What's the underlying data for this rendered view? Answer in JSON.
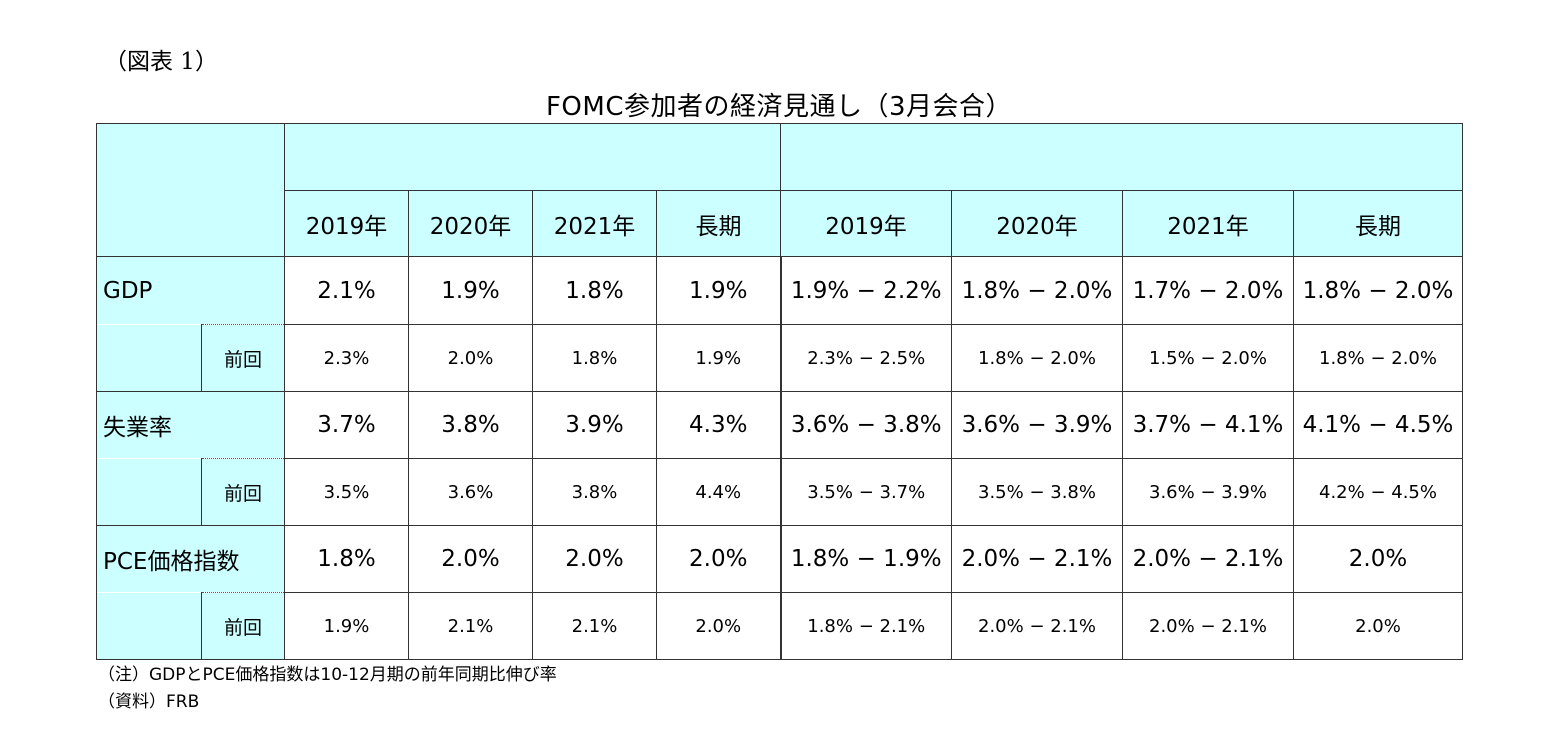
{
  "figure_label": "（図表 1）",
  "title": "FOMC参加者の経済見通し（3月会合）",
  "columns": [
    "2019年",
    "2020年",
    "2021年",
    "長期",
    "2019年",
    "2020年",
    "2021年",
    "長期"
  ],
  "rows": [
    {
      "label": "GDP",
      "values": [
        "2.1%",
        "1.9%",
        "1.8%",
        "1.9%",
        "1.9% − 2.2%",
        "1.8% − 2.0%",
        "1.7% − 2.0%",
        "1.8% − 2.0%"
      ],
      "prev_label": "前回",
      "prev_values": [
        "2.3%",
        "2.0%",
        "1.8%",
        "1.9%",
        "2.3% − 2.5%",
        "1.8% − 2.0%",
        "1.5% − 2.0%",
        "1.8% − 2.0%"
      ]
    },
    {
      "label": "失業率",
      "values": [
        "3.7%",
        "3.8%",
        "3.9%",
        "4.3%",
        "3.6% − 3.8%",
        "3.6% − 3.9%",
        "3.7% − 4.1%",
        "4.1% − 4.5%"
      ],
      "prev_label": "前回",
      "prev_values": [
        "3.5%",
        "3.6%",
        "3.8%",
        "4.4%",
        "3.5% − 3.7%",
        "3.5% − 3.8%",
        "3.6% − 3.9%",
        "4.2% − 4.5%"
      ]
    },
    {
      "label": "PCE価格指数",
      "values": [
        "1.8%",
        "2.0%",
        "2.0%",
        "2.0%",
        "1.8% − 1.9%",
        "2.0% − 2.1%",
        "2.0% − 2.1%",
        "2.0%"
      ],
      "prev_label": "前回",
      "prev_values": [
        "1.9%",
        "2.1%",
        "2.1%",
        "2.0%",
        "1.8% − 2.1%",
        "2.0% − 2.1%",
        "2.0% − 2.1%",
        "2.0%"
      ]
    }
  ],
  "notes": {
    "note": "（注）GDPとPCE価格指数は10-12月期の前年同期比伸び率",
    "source": "（資料）FRB"
  }
}
